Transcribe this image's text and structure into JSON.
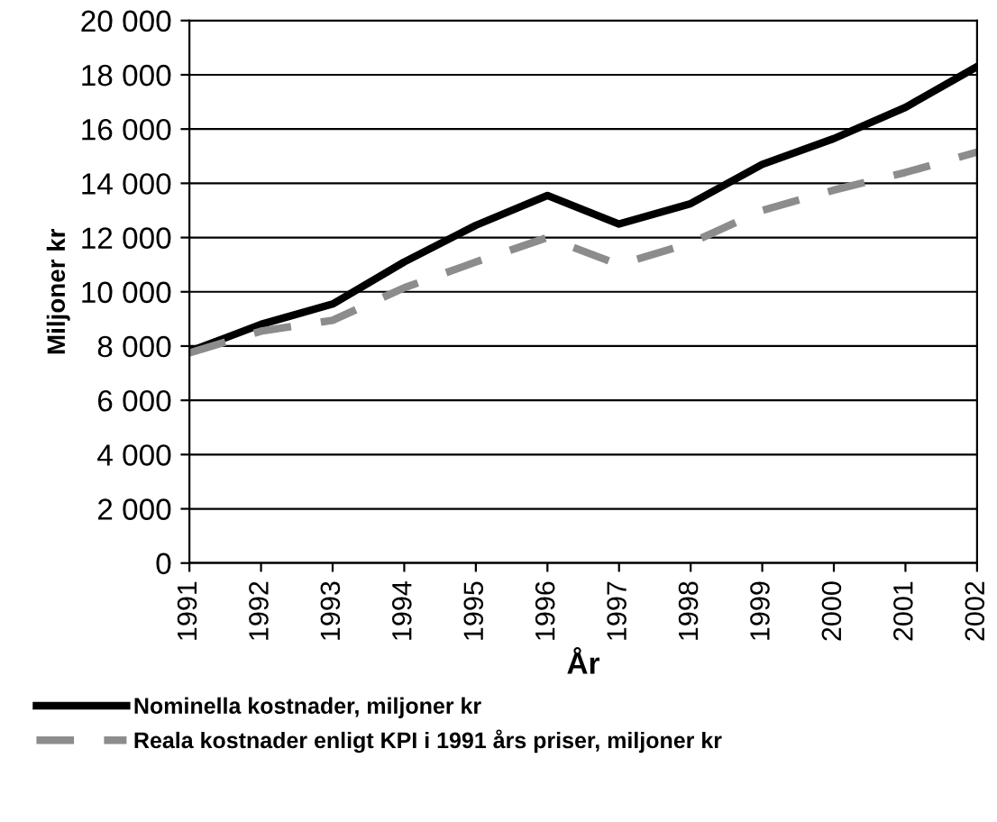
{
  "chart_data": {
    "type": "line",
    "xlabel": "År",
    "ylabel": "Miljoner kr",
    "categories": [
      "1991",
      "1992",
      "1993",
      "1994",
      "1995",
      "1996",
      "1997",
      "1998",
      "1999",
      "2000",
      "2001",
      "2002"
    ],
    "series": [
      {
        "name": "Nominella kostnader, miljoner kr",
        "color": "#000000",
        "line_style": "solid",
        "values": [
          7800,
          8800,
          9550,
          11100,
          12450,
          13550,
          12500,
          13250,
          14700,
          15650,
          16800,
          18300
        ]
      },
      {
        "name": "Reala kostnader enligt KPI i 1991 års priser, miljoner kr",
        "color": "#8c8c8c",
        "line_style": "dashed",
        "values": [
          7750,
          8550,
          8950,
          10150,
          11100,
          12000,
          11000,
          11800,
          13000,
          13750,
          14400,
          15150
        ]
      }
    ],
    "ylim": [
      0,
      20000
    ],
    "yticks": [
      {
        "value": 0,
        "label": "0"
      },
      {
        "value": 2000,
        "label": "2 000"
      },
      {
        "value": 4000,
        "label": "4 000"
      },
      {
        "value": 6000,
        "label": "6 000"
      },
      {
        "value": 8000,
        "label": "8 000"
      },
      {
        "value": 10000,
        "label": "10 000"
      },
      {
        "value": 12000,
        "label": "12 000"
      },
      {
        "value": 14000,
        "label": "14 000"
      },
      {
        "value": 16000,
        "label": "16 000"
      },
      {
        "value": 18000,
        "label": "18 000"
      },
      {
        "value": 20000,
        "label": "20 000"
      }
    ],
    "grid": "y",
    "legend": "bottom",
    "marker": "none"
  }
}
